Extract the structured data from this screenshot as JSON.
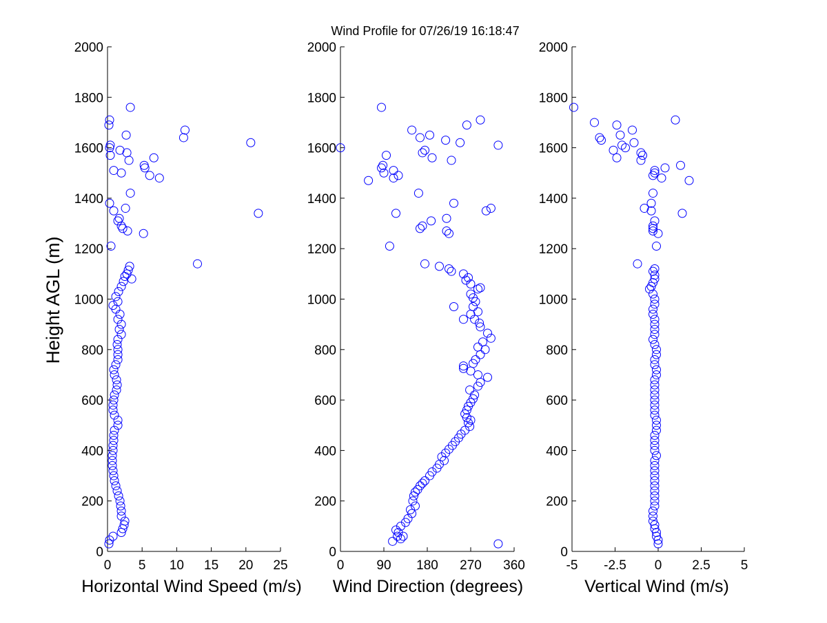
{
  "title": "Wind Profile for  07/26/19 16:18:47",
  "colors": {
    "marker": "#0000ff",
    "axis": "#000000",
    "background": "#ffffff"
  },
  "marker_shape": "circle",
  "chart_data": [
    {
      "type": "scatter",
      "xlabel": "Horizontal Wind Speed (m/s)",
      "ylabel": "Height AGL (m)",
      "xlim": [
        0,
        25
      ],
      "ylim": [
        0,
        2000
      ],
      "xticks": [
        "0",
        "5",
        "10",
        "15",
        "20",
        "25"
      ],
      "xtick_values": [
        0,
        5,
        10,
        15,
        20,
        25
      ],
      "yticks": [
        "0",
        "200",
        "400",
        "600",
        "800",
        "1000",
        "1200",
        "1400",
        "1600",
        "1800",
        "2000"
      ],
      "ytick_values": [
        0,
        200,
        400,
        600,
        800,
        1000,
        1200,
        1400,
        1600,
        1800,
        2000
      ],
      "grid": false,
      "points": [
        [
          0.2,
          30
        ],
        [
          0.3,
          45
        ],
        [
          0.8,
          60
        ],
        [
          2.0,
          75
        ],
        [
          2.2,
          90
        ],
        [
          2.4,
          105
        ],
        [
          2.5,
          120
        ],
        [
          2.0,
          140
        ],
        [
          2.0,
          160
        ],
        [
          1.9,
          180
        ],
        [
          1.8,
          200
        ],
        [
          1.6,
          220
        ],
        [
          1.4,
          240
        ],
        [
          1.2,
          260
        ],
        [
          1.0,
          280
        ],
        [
          0.9,
          300
        ],
        [
          0.8,
          320
        ],
        [
          0.7,
          340
        ],
        [
          0.7,
          360
        ],
        [
          0.7,
          380
        ],
        [
          0.8,
          400
        ],
        [
          0.8,
          420
        ],
        [
          0.9,
          440
        ],
        [
          0.9,
          460
        ],
        [
          1.0,
          480
        ],
        [
          1.5,
          500
        ],
        [
          1.5,
          520
        ],
        [
          1.0,
          540
        ],
        [
          0.8,
          560
        ],
        [
          0.8,
          580
        ],
        [
          0.9,
          600
        ],
        [
          1.0,
          620
        ],
        [
          1.3,
          640
        ],
        [
          1.4,
          660
        ],
        [
          1.3,
          680
        ],
        [
          1.0,
          700
        ],
        [
          0.9,
          720
        ],
        [
          1.2,
          740
        ],
        [
          1.5,
          760
        ],
        [
          1.5,
          780
        ],
        [
          1.5,
          800
        ],
        [
          1.4,
          820
        ],
        [
          1.5,
          840
        ],
        [
          2.0,
          860
        ],
        [
          1.7,
          880
        ],
        [
          2.0,
          900
        ],
        [
          1.5,
          920
        ],
        [
          1.8,
          940
        ],
        [
          1.2,
          960
        ],
        [
          0.8,
          975
        ],
        [
          1.5,
          990
        ],
        [
          1.2,
          1010
        ],
        [
          1.6,
          1030
        ],
        [
          2.0,
          1050
        ],
        [
          2.3,
          1070
        ],
        [
          3.5,
          1080
        ],
        [
          2.5,
          1090
        ],
        [
          2.8,
          1100
        ],
        [
          3.0,
          1115
        ],
        [
          3.2,
          1130
        ],
        [
          13.0,
          1140
        ],
        [
          0.5,
          1210
        ],
        [
          5.2,
          1260
        ],
        [
          2.9,
          1270
        ],
        [
          2.2,
          1280
        ],
        [
          2.0,
          1290
        ],
        [
          1.5,
          1310
        ],
        [
          1.7,
          1320
        ],
        [
          21.8,
          1340
        ],
        [
          0.9,
          1350
        ],
        [
          2.6,
          1360
        ],
        [
          0.3,
          1380
        ],
        [
          3.3,
          1420
        ],
        [
          7.5,
          1480
        ],
        [
          6.1,
          1490
        ],
        [
          2.0,
          1500
        ],
        [
          0.9,
          1510
        ],
        [
          5.4,
          1520
        ],
        [
          5.3,
          1530
        ],
        [
          3.1,
          1550
        ],
        [
          6.7,
          1560
        ],
        [
          0.4,
          1570
        ],
        [
          2.8,
          1580
        ],
        [
          1.8,
          1590
        ],
        [
          0.3,
          1600
        ],
        [
          0.4,
          1610
        ],
        [
          20.7,
          1620
        ],
        [
          11.0,
          1640
        ],
        [
          2.7,
          1650
        ],
        [
          11.2,
          1670
        ],
        [
          0.2,
          1690
        ],
        [
          0.3,
          1710
        ],
        [
          3.3,
          1760
        ]
      ]
    },
    {
      "type": "scatter",
      "xlabel": "Wind Direction (degrees)",
      "ylabel": "",
      "xlim": [
        0,
        360
      ],
      "ylim": [
        0,
        2000
      ],
      "xticks": [
        "0",
        "90",
        "180",
        "270",
        "360"
      ],
      "xtick_values": [
        0,
        90,
        180,
        270,
        360
      ],
      "yticks": [
        "0",
        "200",
        "400",
        "600",
        "800",
        "1000",
        "1200",
        "1400",
        "1600",
        "1800",
        "2000"
      ],
      "ytick_values": [
        0,
        200,
        400,
        600,
        800,
        1000,
        1200,
        1400,
        1600,
        1800,
        2000
      ],
      "grid": false,
      "points": [
        [
          327,
          30
        ],
        [
          108,
          40
        ],
        [
          125,
          50
        ],
        [
          118,
          60
        ],
        [
          130,
          60
        ],
        [
          120,
          75
        ],
        [
          115,
          85
        ],
        [
          125,
          100
        ],
        [
          135,
          115
        ],
        [
          140,
          130
        ],
        [
          148,
          150
        ],
        [
          145,
          165
        ],
        [
          155,
          180
        ],
        [
          150,
          200
        ],
        [
          152,
          220
        ],
        [
          155,
          235
        ],
        [
          160,
          245
        ],
        [
          165,
          260
        ],
        [
          170,
          270
        ],
        [
          175,
          280
        ],
        [
          185,
          300
        ],
        [
          190,
          315
        ],
        [
          200,
          330
        ],
        [
          205,
          345
        ],
        [
          215,
          360
        ],
        [
          210,
          375
        ],
        [
          218,
          390
        ],
        [
          225,
          405
        ],
        [
          232,
          420
        ],
        [
          238,
          435
        ],
        [
          245,
          450
        ],
        [
          250,
          465
        ],
        [
          258,
          480
        ],
        [
          268,
          495
        ],
        [
          265,
          510
        ],
        [
          270,
          520
        ],
        [
          262,
          530
        ],
        [
          258,
          545
        ],
        [
          262,
          560
        ],
        [
          265,
          575
        ],
        [
          270,
          590
        ],
        [
          275,
          605
        ],
        [
          278,
          620
        ],
        [
          268,
          640
        ],
        [
          285,
          655
        ],
        [
          290,
          670
        ],
        [
          305,
          690
        ],
        [
          285,
          700
        ],
        [
          270,
          715
        ],
        [
          255,
          725
        ],
        [
          255,
          735
        ],
        [
          275,
          745
        ],
        [
          280,
          760
        ],
        [
          290,
          780
        ],
        [
          300,
          800
        ],
        [
          285,
          810
        ],
        [
          295,
          830
        ],
        [
          312,
          845
        ],
        [
          305,
          865
        ],
        [
          290,
          890
        ],
        [
          288,
          905
        ],
        [
          278,
          920
        ],
        [
          255,
          920
        ],
        [
          270,
          940
        ],
        [
          285,
          950
        ],
        [
          275,
          970
        ],
        [
          235,
          970
        ],
        [
          280,
          990
        ],
        [
          275,
          1005
        ],
        [
          270,
          1020
        ],
        [
          285,
          1040
        ],
        [
          290,
          1045
        ],
        [
          270,
          1060
        ],
        [
          260,
          1075
        ],
        [
          265,
          1085
        ],
        [
          255,
          1100
        ],
        [
          230,
          1110
        ],
        [
          225,
          1120
        ],
        [
          205,
          1130
        ],
        [
          175,
          1140
        ],
        [
          102,
          1210
        ],
        [
          225,
          1260
        ],
        [
          220,
          1270
        ],
        [
          165,
          1280
        ],
        [
          170,
          1290
        ],
        [
          188,
          1310
        ],
        [
          220,
          1320
        ],
        [
          302,
          1350
        ],
        [
          312,
          1360
        ],
        [
          235,
          1380
        ],
        [
          115,
          1340
        ],
        [
          162,
          1420
        ],
        [
          58,
          1470
        ],
        [
          110,
          1480
        ],
        [
          120,
          1490
        ],
        [
          110,
          1510
        ],
        [
          90,
          1500
        ],
        [
          85,
          1520
        ],
        [
          88,
          1530
        ],
        [
          230,
          1550
        ],
        [
          190,
          1560
        ],
        [
          95,
          1570
        ],
        [
          170,
          1580
        ],
        [
          175,
          1590
        ],
        [
          0,
          1600
        ],
        [
          327,
          1610
        ],
        [
          248,
          1620
        ],
        [
          218,
          1630
        ],
        [
          165,
          1640
        ],
        [
          185,
          1650
        ],
        [
          148,
          1670
        ],
        [
          262,
          1690
        ],
        [
          290,
          1710
        ],
        [
          85,
          1760
        ]
      ]
    },
    {
      "type": "scatter",
      "xlabel": "Vertical Wind (m/s)",
      "ylabel": "",
      "xlim": [
        -5,
        5
      ],
      "ylim": [
        0,
        2000
      ],
      "xticks": [
        "-5",
        "-2.5",
        "0",
        "2.5",
        "5"
      ],
      "xtick_values": [
        -5,
        -2.5,
        0,
        2.5,
        5
      ],
      "yticks": [
        "0",
        "200",
        "400",
        "600",
        "800",
        "1000",
        "1200",
        "1400",
        "1600",
        "1800",
        "2000"
      ],
      "ytick_values": [
        0,
        200,
        400,
        600,
        800,
        1000,
        1200,
        1400,
        1600,
        1800,
        2000
      ],
      "grid": false,
      "points": [
        [
          0.0,
          30
        ],
        [
          0.0,
          45
        ],
        [
          -0.1,
          60
        ],
        [
          -0.1,
          75
        ],
        [
          -0.2,
          90
        ],
        [
          -0.2,
          105
        ],
        [
          -0.3,
          120
        ],
        [
          -0.3,
          140
        ],
        [
          -0.3,
          160
        ],
        [
          -0.2,
          180
        ],
        [
          -0.2,
          200
        ],
        [
          -0.2,
          220
        ],
        [
          -0.2,
          240
        ],
        [
          -0.2,
          260
        ],
        [
          -0.2,
          280
        ],
        [
          -0.2,
          300
        ],
        [
          -0.2,
          320
        ],
        [
          -0.2,
          340
        ],
        [
          -0.2,
          360
        ],
        [
          -0.1,
          380
        ],
        [
          -0.2,
          400
        ],
        [
          -0.2,
          420
        ],
        [
          -0.2,
          440
        ],
        [
          -0.2,
          460
        ],
        [
          -0.1,
          480
        ],
        [
          -0.1,
          500
        ],
        [
          -0.1,
          520
        ],
        [
          -0.2,
          540
        ],
        [
          -0.2,
          560
        ],
        [
          -0.2,
          580
        ],
        [
          -0.2,
          600
        ],
        [
          -0.2,
          620
        ],
        [
          -0.2,
          640
        ],
        [
          -0.2,
          660
        ],
        [
          -0.2,
          680
        ],
        [
          -0.1,
          700
        ],
        [
          -0.1,
          720
        ],
        [
          -0.2,
          740
        ],
        [
          -0.2,
          760
        ],
        [
          -0.1,
          780
        ],
        [
          -0.1,
          800
        ],
        [
          -0.2,
          820
        ],
        [
          -0.3,
          840
        ],
        [
          -0.2,
          860
        ],
        [
          -0.2,
          880
        ],
        [
          -0.2,
          900
        ],
        [
          -0.2,
          920
        ],
        [
          -0.3,
          940
        ],
        [
          -0.3,
          960
        ],
        [
          -0.2,
          980
        ],
        [
          -0.2,
          1000
        ],
        [
          -0.3,
          1020
        ],
        [
          -0.5,
          1040
        ],
        [
          -0.4,
          1050
        ],
        [
          -0.3,
          1065
        ],
        [
          -0.2,
          1080
        ],
        [
          -0.2,
          1095
        ],
        [
          -0.3,
          1110
        ],
        [
          -0.2,
          1120
        ],
        [
          -1.2,
          1140
        ],
        [
          -0.1,
          1210
        ],
        [
          0.0,
          1260
        ],
        [
          -0.3,
          1270
        ],
        [
          -0.3,
          1280
        ],
        [
          -0.3,
          1290
        ],
        [
          -0.2,
          1310
        ],
        [
          1.4,
          1340
        ],
        [
          -0.4,
          1350
        ],
        [
          -0.8,
          1360
        ],
        [
          -0.4,
          1380
        ],
        [
          -0.3,
          1420
        ],
        [
          1.8,
          1470
        ],
        [
          0.2,
          1480
        ],
        [
          -0.3,
          1490
        ],
        [
          -0.2,
          1500
        ],
        [
          -0.2,
          1510
        ],
        [
          0.4,
          1520
        ],
        [
          1.3,
          1530
        ],
        [
          -1.0,
          1550
        ],
        [
          -2.4,
          1560
        ],
        [
          -0.9,
          1570
        ],
        [
          -1.0,
          1580
        ],
        [
          -2.6,
          1590
        ],
        [
          -1.9,
          1600
        ],
        [
          -2.1,
          1610
        ],
        [
          -1.4,
          1620
        ],
        [
          -3.3,
          1630
        ],
        [
          -3.4,
          1640
        ],
        [
          -2.2,
          1650
        ],
        [
          -1.5,
          1670
        ],
        [
          -2.4,
          1690
        ],
        [
          -3.7,
          1700
        ],
        [
          1.0,
          1710
        ],
        [
          -4.9,
          1760
        ]
      ]
    }
  ]
}
